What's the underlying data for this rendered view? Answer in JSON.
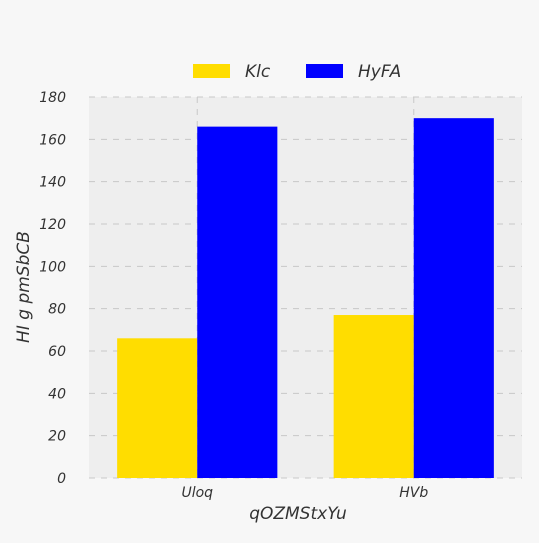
{
  "chart_data": {
    "type": "bar",
    "categories": [
      "Uloq",
      "HVb"
    ],
    "series": [
      {
        "name": "Klc",
        "values": [
          66,
          77
        ],
        "color": "#ffdd00"
      },
      {
        "name": "HyFA",
        "values": [
          166,
          170
        ],
        "color": "#0000ff"
      }
    ],
    "title": "",
    "xlabel": "qOZMStxYu",
    "ylabel": "HI  g pmSbCB",
    "ylim": [
      0,
      180
    ],
    "yticks": [
      0,
      20,
      40,
      60,
      80,
      100,
      120,
      140,
      160,
      180
    ],
    "grid": true,
    "legend_position": "top-center"
  }
}
